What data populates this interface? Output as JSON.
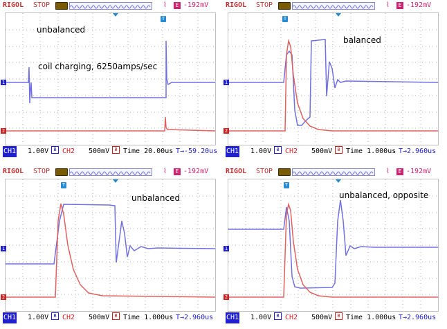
{
  "panels": [
    {
      "brand": "RIGOL",
      "status": "STOP",
      "trig_level": "-192mV",
      "annotations": [
        "unbalanced",
        "coil charging, 6250amps/sec"
      ],
      "ch1_scale": "1.00V",
      "ch2_scale": "500mV",
      "time_label": "Time 20.00us",
      "trig_pos": "-59.20us",
      "ch1_marker": "1",
      "ch2_marker": "2",
      "trig_marker": "T"
    },
    {
      "brand": "RIGOL",
      "status": "STOP",
      "trig_level": "-192mV",
      "annotations": [
        "balanced"
      ],
      "ch1_scale": "1.00V",
      "ch2_scale": "500mV",
      "time_label": "Time 1.000us",
      "trig_pos": "2.960us",
      "ch1_marker": "1",
      "ch2_marker": "2",
      "trig_marker": "T"
    },
    {
      "brand": "RIGOL",
      "status": "STOP",
      "trig_level": "-192mV",
      "annotations": [
        "unbalanced"
      ],
      "ch1_scale": "1.00V",
      "ch2_scale": "500mV",
      "time_label": "Time 1.000us",
      "trig_pos": "2.960us",
      "ch1_marker": "1",
      "ch2_marker": "2",
      "trig_marker": "T"
    },
    {
      "brand": "RIGOL",
      "status": "STOP",
      "trig_level": "-192mV",
      "annotations": [
        "unbalanced, opposite"
      ],
      "ch1_scale": "1.00V",
      "ch2_scale": "500mV",
      "time_label": "Time 1.000us",
      "trig_pos": "2.960us",
      "ch1_marker": "1",
      "ch2_marker": "2",
      "trig_marker": "T"
    }
  ],
  "ch1_badge": "CH1",
  "ch2_badge": "CH2",
  "bw_icon": "B",
  "trig_edge_icon": "E",
  "trig_mode_icon": "rising-edge-icon",
  "trig_arrow_glyph": "T→",
  "colors": {
    "ch1": "#7070e0",
    "ch2": "#e06060",
    "brand": "#c03030",
    "trigger": "#d02070",
    "grid": "#b0b0b0"
  }
}
